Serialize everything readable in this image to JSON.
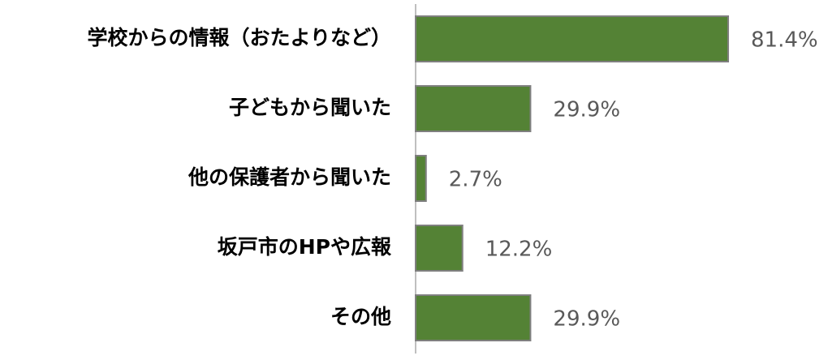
{
  "chart_data": {
    "type": "barh",
    "categories": [
      "学校からの情報（おたよりなど）",
      "子どもから聞いた",
      "他の保護者から聞いた",
      "坂戸市のHPや広報",
      "その他"
    ],
    "values": [
      81.4,
      29.9,
      2.7,
      12.2,
      29.9
    ],
    "value_labels": [
      "81.4%",
      "29.9%",
      "2.7%",
      "12.2%",
      "29.9%"
    ],
    "color": "#548235"
  }
}
